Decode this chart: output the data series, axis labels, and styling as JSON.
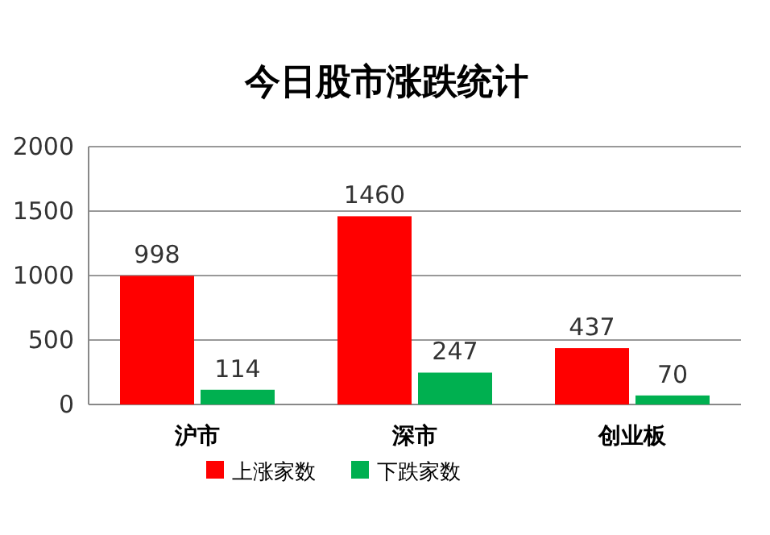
{
  "chart_data": {
    "type": "bar",
    "title": "今日股市涨跌统计",
    "categories": [
      "沪市",
      "深市",
      "创业板"
    ],
    "series": [
      {
        "name": "上涨家数",
        "color": "#ff0000",
        "values": [
          998,
          1460,
          437
        ]
      },
      {
        "name": "下跌家数",
        "color": "#00b050",
        "values": [
          114,
          247,
          70
        ]
      }
    ],
    "ylim": [
      0,
      2000
    ],
    "yticks": [
      0,
      500,
      1000,
      1500,
      2000
    ],
    "grid": "y",
    "data_labels": true,
    "legend": "bottom"
  }
}
